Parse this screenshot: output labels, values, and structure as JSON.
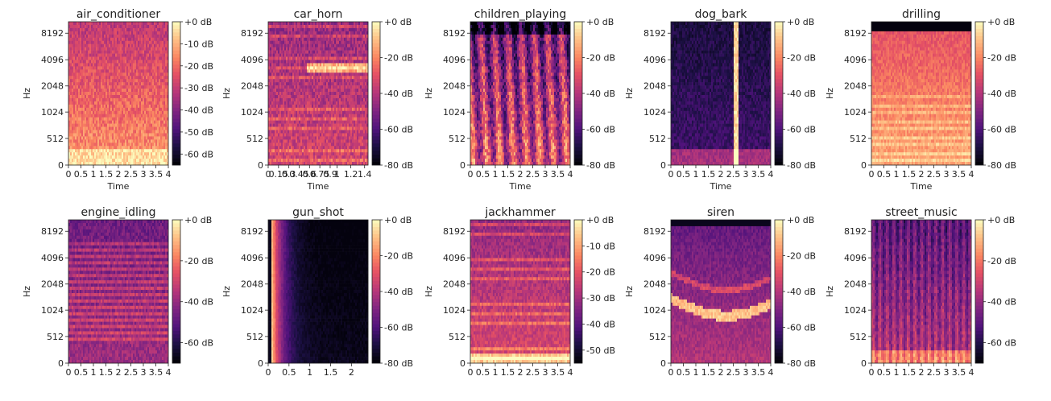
{
  "chart_data": [
    {
      "type": "heatmap",
      "title": "air_conditioner",
      "xlabel": "Time",
      "ylabel": "Hz",
      "x_ticks": [
        "0",
        "0.5",
        "1",
        "1.5",
        "2",
        "2.5",
        "3",
        "3.5",
        "4"
      ],
      "xlim": [
        0,
        4
      ],
      "y_ticks": [
        "0",
        "512",
        "1024",
        "2048",
        "4096",
        "8192"
      ],
      "colorbar_ticks": [
        "+0 dB",
        "-10 dB",
        "-20 dB",
        "-30 dB",
        "-40 dB",
        "-50 dB",
        "-60 dB"
      ],
      "colorbar_range_db": [
        -65,
        0
      ],
      "colormap": "magma",
      "energy_profile": "broadband",
      "intensity": 0.62
    },
    {
      "type": "heatmap",
      "title": "car_horn",
      "xlabel": "Time",
      "ylabel": "Hz",
      "x_ticks": [
        "0",
        "0.15",
        "0.3",
        "0.45",
        "0.6",
        "0.75",
        "0.9",
        "1",
        "1.2",
        "1.4"
      ],
      "xlim": [
        0,
        1.45
      ],
      "y_ticks": [
        "0",
        "512",
        "1024",
        "2048",
        "4096",
        "8192"
      ],
      "colorbar_ticks": [
        "+0 dB",
        "-20 dB",
        "-40 dB",
        "-60 dB",
        "-80 dB"
      ],
      "colorbar_range_db": [
        -80,
        0
      ],
      "colormap": "magma",
      "energy_profile": "harmonic",
      "intensity": 0.58
    },
    {
      "type": "heatmap",
      "title": "children_playing",
      "xlabel": "Time",
      "ylabel": "Hz",
      "x_ticks": [
        "0",
        "0.5",
        "1",
        "1.5",
        "2",
        "2.5",
        "3",
        "3.5",
        "4"
      ],
      "xlim": [
        0,
        4
      ],
      "y_ticks": [
        "0",
        "512",
        "1024",
        "2048",
        "4096",
        "8192"
      ],
      "colorbar_ticks": [
        "+0 dB",
        "-20 dB",
        "-40 dB",
        "-60 dB",
        "-80 dB"
      ],
      "colorbar_range_db": [
        -80,
        0
      ],
      "colormap": "magma",
      "energy_profile": "streaky",
      "intensity": 0.6
    },
    {
      "type": "heatmap",
      "title": "dog_bark",
      "xlabel": "Time",
      "ylabel": "Hz",
      "x_ticks": [
        "0",
        "0.5",
        "1",
        "1.5",
        "2",
        "2.5",
        "3",
        "3.5",
        "4"
      ],
      "xlim": [
        0,
        4
      ],
      "y_ticks": [
        "0",
        "512",
        "1024",
        "2048",
        "4096",
        "8192"
      ],
      "colorbar_ticks": [
        "+0 dB",
        "-20 dB",
        "-40 dB",
        "-60 dB",
        "-80 dB"
      ],
      "colorbar_range_db": [
        -80,
        0
      ],
      "colormap": "magma",
      "energy_profile": "impulse",
      "event_time": 2.6,
      "intensity": 0.22
    },
    {
      "type": "heatmap",
      "title": "drilling",
      "xlabel": "Time",
      "ylabel": "Hz",
      "x_ticks": [
        "0",
        "0.5",
        "1",
        "1.5",
        "2",
        "2.5",
        "3",
        "3.5",
        "4"
      ],
      "xlim": [
        0,
        4
      ],
      "y_ticks": [
        "0",
        "512",
        "1024",
        "2048",
        "4096",
        "8192"
      ],
      "colorbar_ticks": [
        "+0 dB",
        "-20 dB",
        "-40 dB",
        "-60 dB",
        "-80 dB"
      ],
      "colorbar_range_db": [
        -80,
        0
      ],
      "colormap": "magma",
      "energy_profile": "dense",
      "intensity": 0.82
    },
    {
      "type": "heatmap",
      "title": "engine_idling",
      "xlabel": "",
      "ylabel": "Hz",
      "x_ticks": [
        "0",
        "0.5",
        "1",
        "1.5",
        "2",
        "2.5",
        "3",
        "3.5",
        "4"
      ],
      "xlim": [
        0,
        4
      ],
      "y_ticks": [
        "0",
        "512",
        "1024",
        "2048",
        "4096",
        "8192"
      ],
      "colorbar_ticks": [
        "+0 dB",
        "-20 dB",
        "-40 dB",
        "-60 dB"
      ],
      "colorbar_range_db": [
        -70,
        0
      ],
      "colormap": "magma",
      "energy_profile": "tonal",
      "intensity": 0.45
    },
    {
      "type": "heatmap",
      "title": "gun_shot",
      "xlabel": "",
      "ylabel": "Hz",
      "x_ticks": [
        "0",
        "0.5",
        "1",
        "1.5",
        "2"
      ],
      "xlim": [
        0,
        2.4
      ],
      "y_ticks": [
        "0",
        "512",
        "1024",
        "2048",
        "4096",
        "8192"
      ],
      "colorbar_ticks": [
        "+0 dB",
        "-20 dB",
        "-40 dB",
        "-60 dB",
        "-80 dB"
      ],
      "colorbar_range_db": [
        -80,
        0
      ],
      "colormap": "magma",
      "energy_profile": "onset_decay",
      "event_time": 0.08,
      "intensity": 0.12
    },
    {
      "type": "heatmap",
      "title": "jackhammer",
      "xlabel": "",
      "ylabel": "Hz",
      "x_ticks": [
        "0",
        "0.5",
        "1",
        "1.5",
        "2",
        "2.5",
        "3",
        "3.5",
        "4"
      ],
      "xlim": [
        0,
        4
      ],
      "y_ticks": [
        "0",
        "512",
        "1024",
        "2048",
        "4096",
        "8192"
      ],
      "colorbar_ticks": [
        "+0 dB",
        "-10 dB",
        "-20 dB",
        "-30 dB",
        "-40 dB",
        "-50 dB"
      ],
      "colorbar_range_db": [
        -55,
        0
      ],
      "colormap": "magma",
      "energy_profile": "pulsed",
      "intensity": 0.6
    },
    {
      "type": "heatmap",
      "title": "siren",
      "xlabel": "",
      "ylabel": "Hz",
      "x_ticks": [
        "0",
        "0.5",
        "1",
        "1.5",
        "2",
        "2.5",
        "3",
        "3.5",
        "4"
      ],
      "xlim": [
        0,
        4
      ],
      "y_ticks": [
        "0",
        "512",
        "1024",
        "2048",
        "4096",
        "8192"
      ],
      "colorbar_ticks": [
        "+0 dB",
        "-20 dB",
        "-40 dB",
        "-60 dB",
        "-80 dB"
      ],
      "colorbar_range_db": [
        -80,
        0
      ],
      "colormap": "magma",
      "energy_profile": "sweep",
      "intensity": 0.5
    },
    {
      "type": "heatmap",
      "title": "street_music",
      "xlabel": "",
      "ylabel": "Hz",
      "x_ticks": [
        "0",
        "0.5",
        "1",
        "1.5",
        "2",
        "2.5",
        "3",
        "3.5",
        "4"
      ],
      "xlim": [
        0,
        4
      ],
      "y_ticks": [
        "0",
        "512",
        "1024",
        "2048",
        "4096",
        "8192"
      ],
      "colorbar_ticks": [
        "+0 dB",
        "-20 dB",
        "-40 dB",
        "-60 dB"
      ],
      "colorbar_range_db": [
        -70,
        0
      ],
      "colormap": "magma",
      "energy_profile": "music",
      "intensity": 0.5
    }
  ]
}
